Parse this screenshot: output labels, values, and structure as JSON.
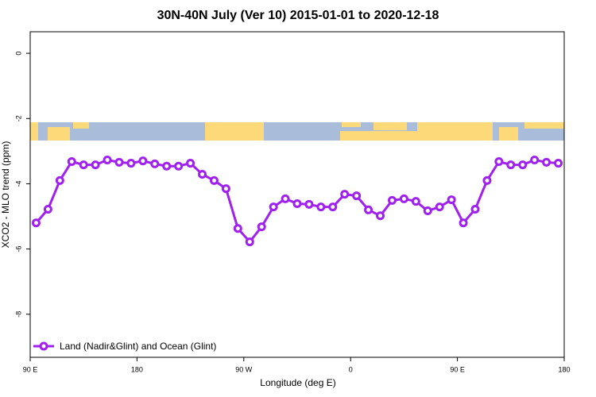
{
  "chart_data": {
    "type": "line",
    "title": "30N-40N July (Ver 10)   2015-01-01 to 2020-12-18",
    "x_label": "Longitude (deg E)",
    "y_label": "XCO2 - MLO trend (ppm)",
    "x": [
      95,
      105,
      115,
      125,
      135,
      145,
      155,
      165,
      175,
      185,
      195,
      205,
      215,
      225,
      235,
      245,
      255,
      265,
      275,
      285,
      295,
      305,
      315,
      325,
      335,
      345,
      355,
      365,
      375,
      385,
      395,
      405,
      415,
      425,
      435,
      445,
      455,
      465,
      475,
      485,
      495,
      505,
      515,
      525,
      535
    ],
    "series": [
      {
        "name": "Land (Nadir&Glint) and Ocean (Glint)",
        "color": "#a020f0",
        "values": [
          -5.2,
          -4.78,
          -3.9,
          -3.32,
          -3.42,
          -3.42,
          -3.27,
          -3.34,
          -3.37,
          -3.3,
          -3.39,
          -3.46,
          -3.46,
          -3.37,
          -3.71,
          -3.9,
          -4.15,
          -5.37,
          -5.78,
          -5.32,
          -4.71,
          -4.46,
          -4.61,
          -4.63,
          -4.71,
          -4.71,
          -4.32,
          -4.37,
          -4.8,
          -4.98,
          -4.51,
          -4.46,
          -4.54,
          -4.83,
          -4.71,
          -4.49,
          -5.2,
          -4.78,
          -3.9,
          -3.32,
          -3.42,
          -3.42,
          -3.27,
          -3.34,
          -3.37
        ]
      }
    ],
    "xlim": [
      90,
      540
    ],
    "xticks": [
      {
        "value": 90,
        "label": "90 E"
      },
      {
        "value": 180,
        "label": "180"
      },
      {
        "value": 270,
        "label": "90 W"
      },
      {
        "value": 360,
        "label": "0"
      },
      {
        "value": 450,
        "label": "90 E"
      },
      {
        "value": 540,
        "label": "180"
      }
    ],
    "ylim": [
      -9.32,
      0.66
    ],
    "yticks": [
      0,
      -2,
      -4,
      -6,
      -8
    ],
    "legend": "bottom-left"
  }
}
